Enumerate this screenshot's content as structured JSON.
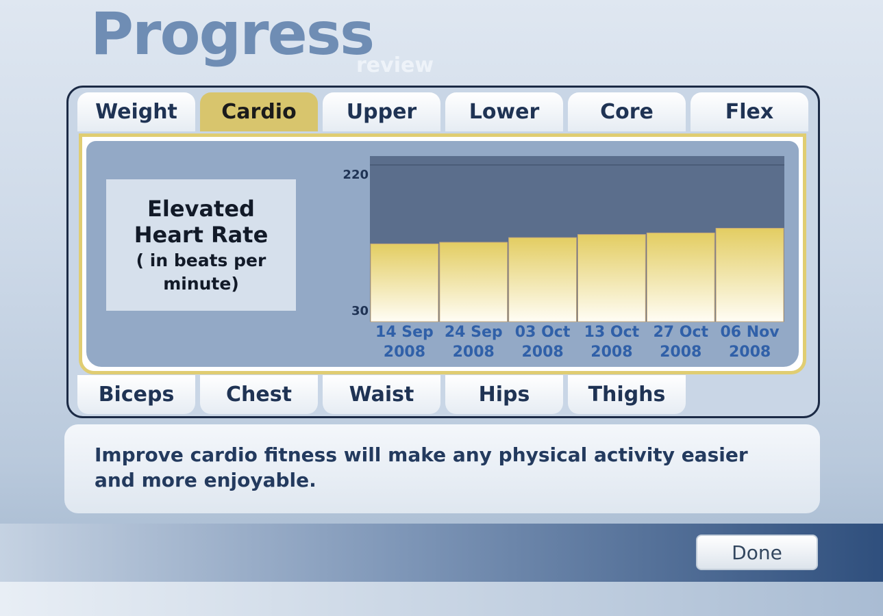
{
  "header": {
    "title": "Progress",
    "subtitle": "review"
  },
  "top_tabs": [
    {
      "label": "Weight"
    },
    {
      "label": "Cardio",
      "active": true
    },
    {
      "label": "Upper"
    },
    {
      "label": "Lower"
    },
    {
      "label": "Core"
    },
    {
      "label": "Flex"
    }
  ],
  "bottom_tabs": [
    {
      "label": "Biceps"
    },
    {
      "label": "Chest"
    },
    {
      "label": "Waist"
    },
    {
      "label": "Hips"
    },
    {
      "label": "Thighs"
    }
  ],
  "metric": {
    "title_line1": "Elevated",
    "title_line2": "Heart Rate",
    "unit_line1": "( in beats per",
    "unit_line2": "minute)"
  },
  "colors": {
    "accent": "#d8c56d",
    "plot_bg": "#5b6e8c",
    "bar_top": "#e3cd62",
    "bar_bottom": "#fffdf5",
    "frame": "#1b2a45"
  },
  "chart_data": {
    "type": "bar",
    "categories": [
      "14 Sep 2008",
      "24 Sep 2008",
      "03 Oct 2008",
      "13 Oct 2008",
      "27 Oct 2008",
      "06 Nov 2008"
    ],
    "values": [
      119,
      121,
      127,
      131,
      133,
      139
    ],
    "ylim": [
      30,
      220
    ],
    "yticks": [
      "220",
      "30"
    ],
    "grid": false
  },
  "tip": "Improve cardio fitness will make any physical activity easier and more enjoyable.",
  "buttons": {
    "done": "Done"
  }
}
